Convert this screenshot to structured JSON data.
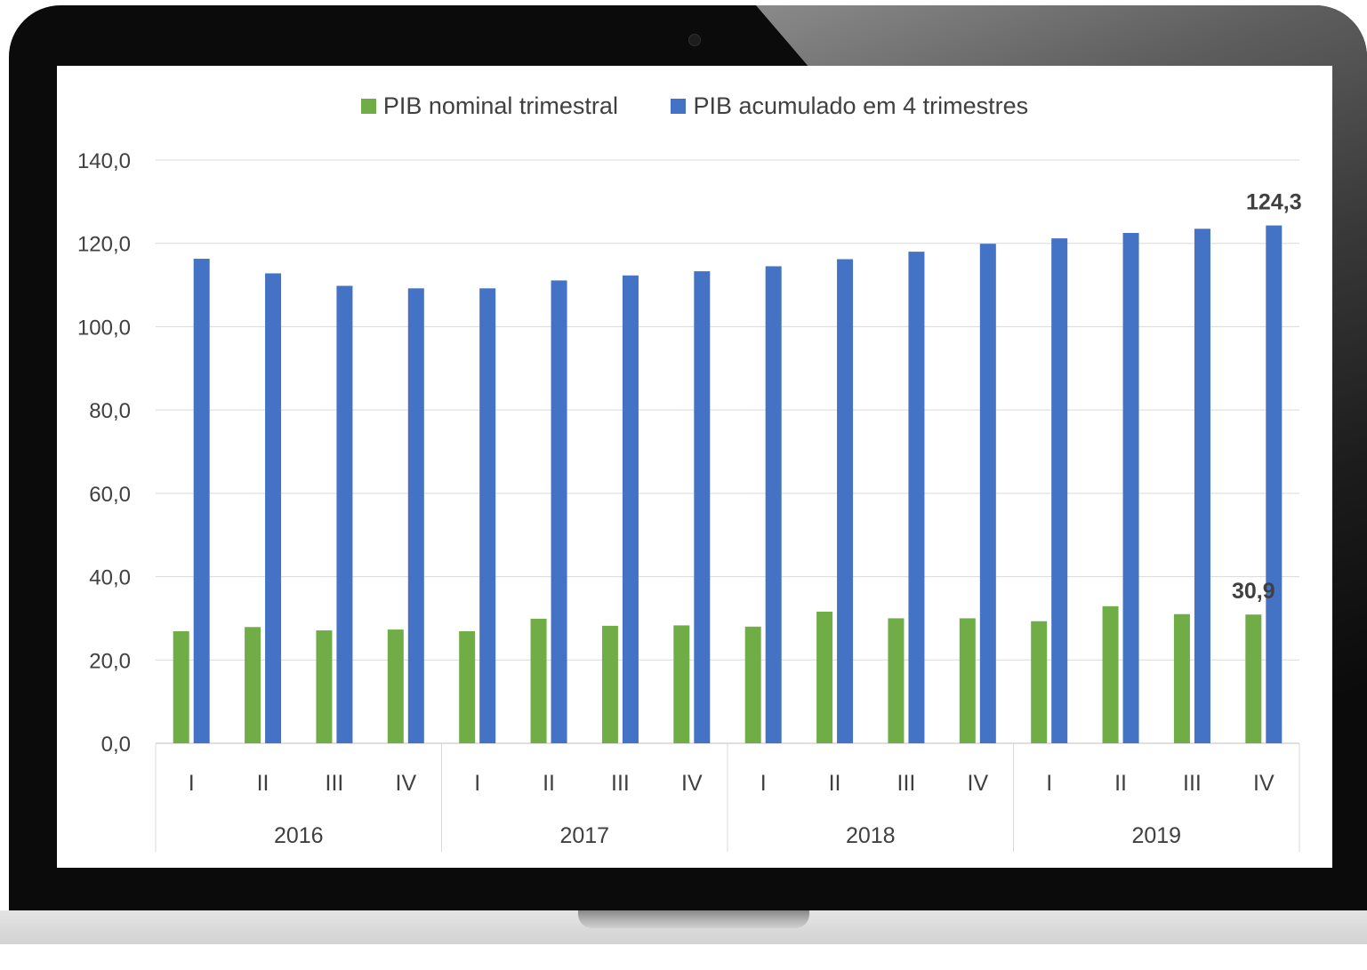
{
  "chart_data": {
    "type": "bar",
    "title": "",
    "xlabel": "",
    "ylabel": "",
    "ylim": [
      0,
      140
    ],
    "yticks": [
      "0,0",
      "20,0",
      "40,0",
      "60,0",
      "80,0",
      "100,0",
      "120,0",
      "140,0"
    ],
    "grid": true,
    "legend_position": "top",
    "categories": [
      "I",
      "II",
      "III",
      "IV",
      "I",
      "II",
      "III",
      "IV",
      "I",
      "II",
      "III",
      "IV",
      "I",
      "II",
      "III",
      "IV"
    ],
    "groups": [
      "2016",
      "2017",
      "2018",
      "2019"
    ],
    "series": [
      {
        "name": "PIB nominal trimestral",
        "color": "#70ad47",
        "values": [
          26.9,
          27.9,
          27.1,
          27.3,
          26.9,
          29.9,
          28.2,
          28.3,
          28.0,
          31.6,
          30.0,
          30.0,
          29.3,
          32.9,
          31.0,
          30.9
        ]
      },
      {
        "name": "PIB acumulado em 4 trimestres",
        "color": "#4472c4",
        "values": [
          116.3,
          112.8,
          109.8,
          109.2,
          109.2,
          111.1,
          112.3,
          113.3,
          114.5,
          116.2,
          118.0,
          119.9,
          121.2,
          122.5,
          123.5,
          124.3
        ]
      }
    ],
    "data_labels": [
      {
        "series": 1,
        "index": 15,
        "text": "124,3"
      },
      {
        "series": 0,
        "index": 15,
        "text": "30,9"
      }
    ]
  }
}
